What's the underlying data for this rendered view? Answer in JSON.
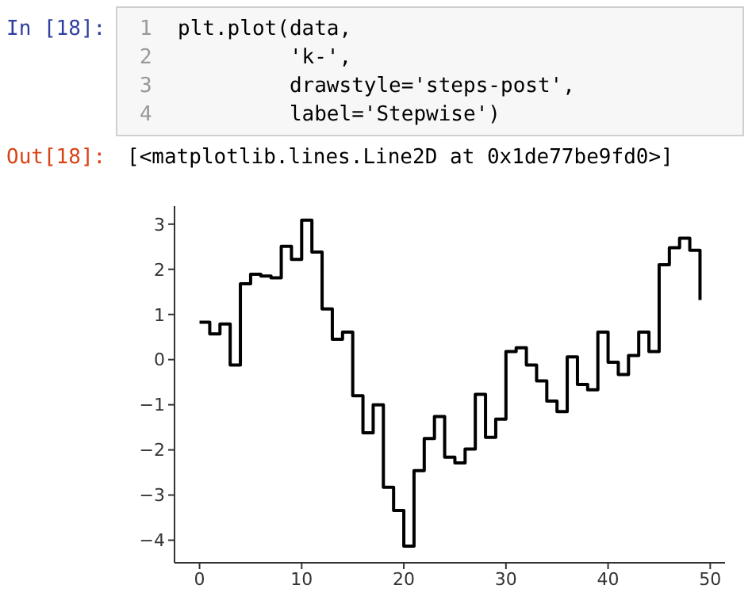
{
  "chart_data": {
    "type": "step",
    "annotations": [
      "In [18]:",
      "1",
      "2",
      "3",
      "4",
      "plt.plot(data,",
      "         'k-',",
      "         drawstyle='steps-post',",
      "         label='Stepwise')",
      "Out[18]:",
      "[<matplotlib.lines.Line2D at 0x1de77be9fd0>]"
    ],
    "x": [
      0,
      1,
      2,
      3,
      4,
      5,
      6,
      7,
      8,
      9,
      10,
      11,
      12,
      13,
      14,
      15,
      16,
      17,
      18,
      19,
      20,
      21,
      22,
      23,
      24,
      25,
      26,
      27,
      28,
      29,
      30,
      31,
      32,
      33,
      34,
      35,
      36,
      37,
      38,
      39,
      40,
      41,
      42,
      43,
      44,
      45,
      46,
      47,
      48,
      49
    ],
    "series": [
      {
        "color": "#000000",
        "values": [
          0.83,
          0.57,
          0.79,
          -0.12,
          1.68,
          1.89,
          1.85,
          1.81,
          2.51,
          2.22,
          3.09,
          2.38,
          1.12,
          0.45,
          0.61,
          -0.8,
          -1.62,
          -1.0,
          -2.83,
          -3.34,
          -4.13,
          -2.46,
          -1.75,
          -1.26,
          -2.16,
          -2.29,
          -1.98,
          -0.77,
          -1.72,
          -1.32,
          0.18,
          0.26,
          -0.12,
          -0.47,
          -0.92,
          -1.15,
          0.06,
          -0.55,
          -0.67,
          0.61,
          -0.06,
          -0.33,
          0.09,
          0.61,
          0.18,
          2.1,
          2.48,
          2.69,
          2.42,
          1.32
        ]
      }
    ],
    "xlim": [
      -2.45,
      51.45
    ],
    "xticks": [
      0,
      10,
      20,
      30,
      40,
      50
    ],
    "ylim": [
      -4.5,
      3.4
    ],
    "yticks": [
      -4,
      -3,
      -2,
      -1,
      0,
      1,
      2,
      3
    ],
    "grid": false,
    "legend": false,
    "marker": "none",
    "line_style": "solid"
  }
}
